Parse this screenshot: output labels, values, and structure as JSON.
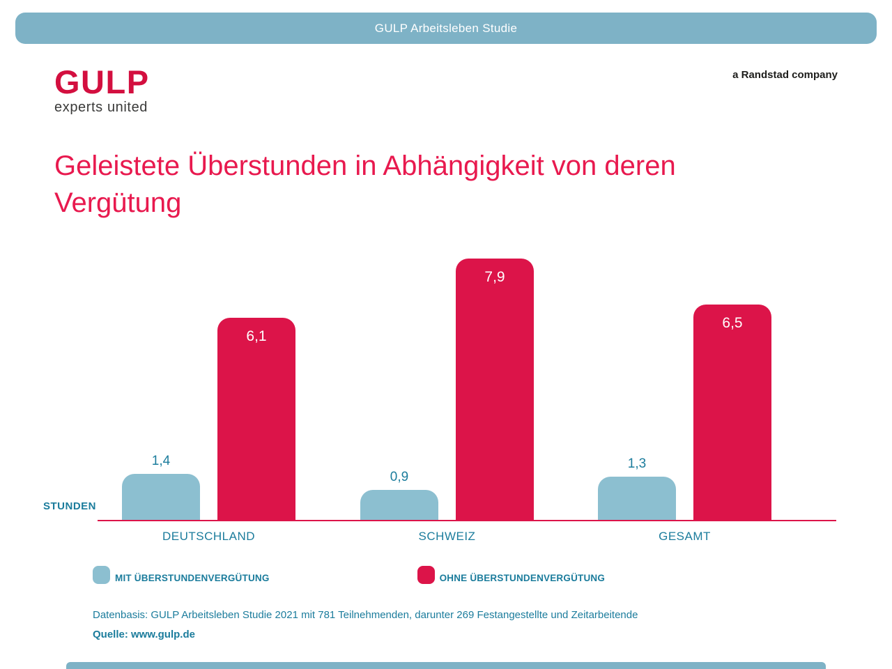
{
  "banner": {
    "label": "GULP Arbeitsleben Studie"
  },
  "logo": {
    "brand": "GULP",
    "tagline": "experts united"
  },
  "company_note": "a Randstad company",
  "title": "Geleistete Überstunden in Abhängigkeit von deren Vergütung",
  "chart_data": {
    "type": "bar",
    "categories": [
      "DEUTSCHLAND",
      "SCHWEIZ",
      "GESAMT"
    ],
    "series": [
      {
        "name": "MIT ÜBERSTUNDENVERGÜTUNG",
        "color": "#8cbfd0",
        "values": [
          1.4,
          0.9,
          1.3
        ],
        "value_labels": [
          "1,4",
          "0,9",
          "1,3"
        ]
      },
      {
        "name": "OHNE ÜBERSTUNDENVERGÜTUNG",
        "color": "#dc1449",
        "values": [
          6.1,
          7.9,
          6.5
        ],
        "value_labels": [
          "6,1",
          "7,9",
          "6,5"
        ]
      }
    ],
    "ylabel": "STUNDEN",
    "ylim": [
      0,
      8
    ],
    "grid": false,
    "legend_position": "bottom",
    "value_label_style": {
      "blue_series": "above bar, teal",
      "red_series": "inside bar top, white"
    }
  },
  "footer": {
    "datenbasis": "Datenbasis: GULP Arbeitsleben Studie 2021 mit 781 Teilnehmenden, darunter 269 Festangestellte und Zeitarbeitende",
    "quelle": "Quelle: www.gulp.de"
  },
  "colors": {
    "banner_blue": "#7eb2c6",
    "bar_blue": "#8cbfd0",
    "bar_red": "#dc1449",
    "axis_red": "#dc1449",
    "title_red": "#e8194e",
    "logo_red": "#d30f3f",
    "teal_text": "#1b7c9c",
    "dark_text": "#3a3a39"
  }
}
